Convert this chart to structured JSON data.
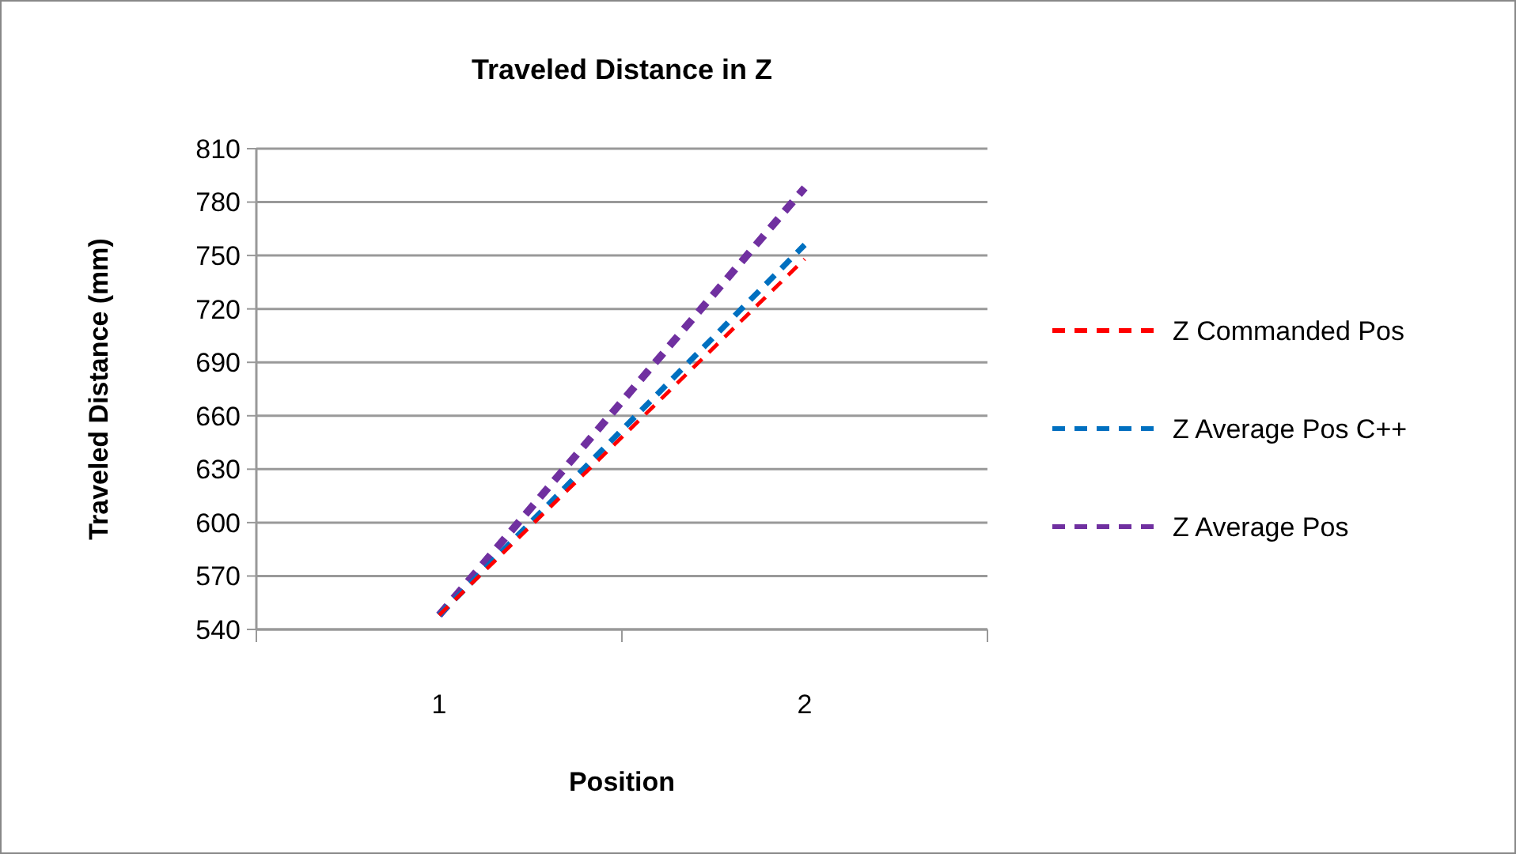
{
  "chart_data": {
    "type": "line",
    "title": "Traveled Distance in Z",
    "xlabel": "Position",
    "ylabel": "Traveled Distance (mm)",
    "categories": [
      "1",
      "2"
    ],
    "series": [
      {
        "name": "Z Commanded Pos",
        "color": "#ff0000",
        "values": [
          548,
          748
        ]
      },
      {
        "name": "Z Average Pos C++",
        "color": "#0070c0",
        "values": [
          548,
          756
        ]
      },
      {
        "name": "Z Average Pos",
        "color": "#7030a0",
        "values": [
          548,
          788
        ]
      }
    ],
    "ylim": [
      540,
      810
    ],
    "yticks": [
      540,
      570,
      600,
      630,
      660,
      690,
      720,
      750,
      780,
      810
    ],
    "grid": "y",
    "legend": "right",
    "marker": "none",
    "line_style": "dashed"
  }
}
